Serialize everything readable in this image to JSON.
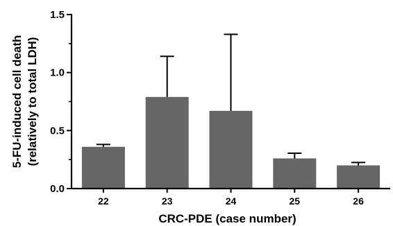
{
  "chart_data": {
    "type": "bar",
    "title": "",
    "xlabel": "CRC-PDE (case number)",
    "ylabel_lines": [
      "5-FU-induced cell death",
      "(relatively to total LDH)"
    ],
    "categories": [
      "22",
      "23",
      "24",
      "25",
      "26"
    ],
    "values": [
      0.36,
      0.79,
      0.67,
      0.26,
      0.2
    ],
    "errors": [
      0.02,
      0.35,
      0.66,
      0.045,
      0.025
    ],
    "ylim": [
      0,
      1.5
    ],
    "yticks": [
      0.0,
      0.5,
      1.0,
      1.5
    ],
    "ytick_labels": [
      "0.0",
      "0.5",
      "1.0",
      "1.5"
    ],
    "minor_yticks": [
      0.25,
      0.75,
      1.25
    ],
    "bar_color": "#666666",
    "axis_color": "#000000",
    "grid": false,
    "legend": "none"
  }
}
